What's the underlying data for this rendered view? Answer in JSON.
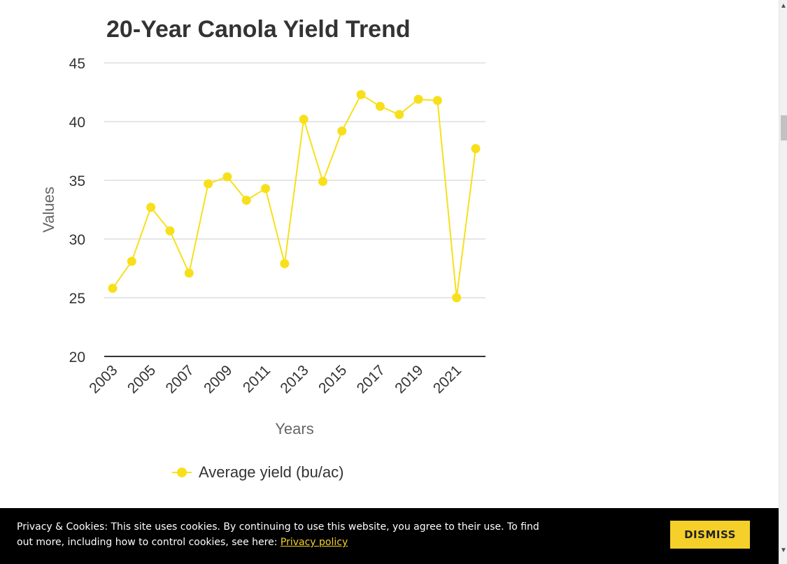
{
  "chart_data": {
    "type": "line",
    "title": "20-Year Canola Yield Trend",
    "xlabel": "Years",
    "ylabel": "Values",
    "x": [
      2003,
      2004,
      2005,
      2006,
      2007,
      2008,
      2009,
      2010,
      2011,
      2012,
      2013,
      2014,
      2015,
      2016,
      2017,
      2018,
      2019,
      2020,
      2021,
      2022
    ],
    "x_tick_labels": [
      "2003",
      "2005",
      "2007",
      "2009",
      "2011",
      "2013",
      "2015",
      "2017",
      "2019",
      "2021"
    ],
    "y_ticks": [
      20,
      25,
      30,
      35,
      40,
      45
    ],
    "ylim": [
      20,
      45
    ],
    "grid": true,
    "legend_position": "bottom",
    "series": [
      {
        "name": "Average yield (bu/ac)",
        "color": "#f7e01b",
        "values": [
          25.8,
          28.1,
          32.7,
          30.7,
          27.1,
          34.7,
          35.3,
          33.3,
          34.3,
          27.9,
          40.2,
          34.9,
          39.2,
          42.3,
          41.3,
          40.6,
          41.9,
          41.8,
          25.0,
          37.7
        ]
      }
    ]
  },
  "cookie_banner": {
    "text": "Privacy & Cookies: This site uses cookies. By continuing to use this website, you agree to their use. To find out more, including how to control cookies, see here: ",
    "link_label": "Privacy policy",
    "dismiss_label": "DISMISS",
    "accent_color": "#f5d02b"
  },
  "scrollbar": {
    "up_icon": "chevron-up-icon",
    "down_icon": "chevron-down-icon"
  }
}
